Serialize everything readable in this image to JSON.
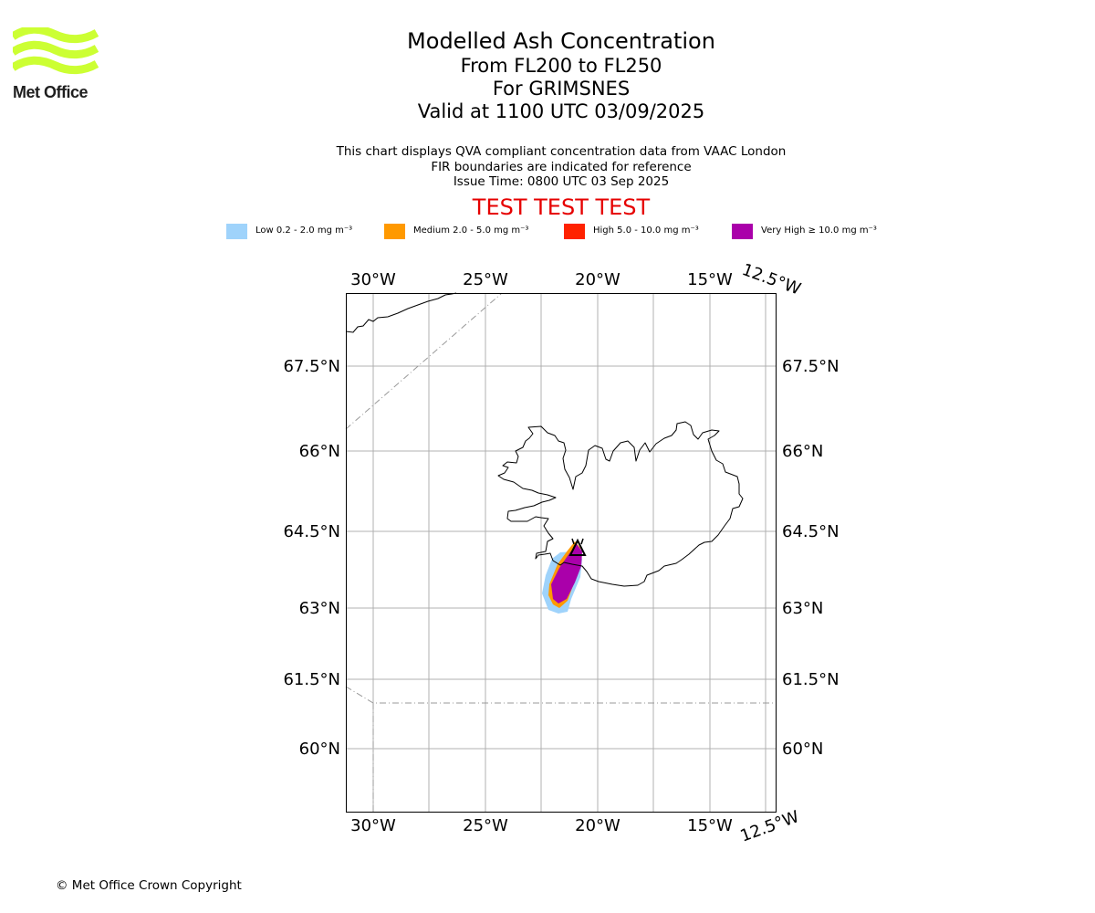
{
  "logo": {
    "text": "Met Office",
    "color": "#ccff33"
  },
  "title": "Modelled Ash Concentration",
  "subtitles": [
    "From FL200 to FL250",
    "For GRIMSNES",
    "Valid at 1100 UTC 03/09/2025"
  ],
  "notes": [
    "This chart displays QVA compliant concentration data from VAAC London",
    "FIR boundaries are indicated for reference",
    "Issue Time: 0800 UTC 03 Sep 2025"
  ],
  "banner": "TEST TEST TEST",
  "legend": [
    {
      "label": "Low 0.2 - 2.0 mg m⁻³",
      "color": "#9fd3fb"
    },
    {
      "label": "Medium 2.0 - 5.0 mg m⁻³",
      "color": "#ff9900"
    },
    {
      "label": "High 5.0 - 10.0 mg m⁻³",
      "color": "#ff2200"
    },
    {
      "label": "Very High ≥ 10.0 mg m⁻³",
      "color": "#aa00aa"
    }
  ],
  "map": {
    "lon_ticks": [
      "30°W",
      "25°W",
      "20°W",
      "15°W",
      "12.5°W"
    ],
    "lat_ticks": [
      "67.5°N",
      "66°N",
      "64.5°N",
      "63°N",
      "61.5°N",
      "60°N"
    ],
    "volcano_icon": "volcano-triangle-icon"
  },
  "copyright": "© Met Office Crown Copyright"
}
